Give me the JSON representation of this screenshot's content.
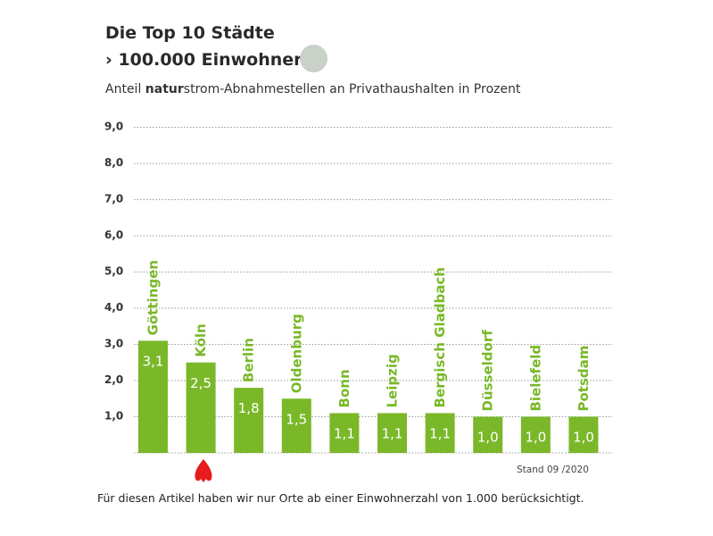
{
  "title_line1": "Die Top 10 Städte",
  "title_line2": "› 100.000 Einwohner",
  "subtitle_pre": "Anteil ",
  "subtitle_bold": "natur",
  "subtitle_post": "strom-Abnahmestellen an Privathaushalten in Prozent",
  "stand": "Stand 09 /2020",
  "footnote": "Für diesen Artikel haben wir nur Orte ab einer Einwohnerzahl von 1.000 berücksichtigt.",
  "colors": {
    "bar": "#7ab829",
    "label": "#7ab829",
    "value_text": "#ffffff",
    "marker": "#e81c1c",
    "grid": "#9a9a9a"
  },
  "chart_data": {
    "type": "bar",
    "categories": [
      "Göttingen",
      "Köln",
      "Berlin",
      "Oldenburg",
      "Bonn",
      "Leipzig",
      "Bergisch Gladbach",
      "Düsseldorf",
      "Bielefeld",
      "Potsdam"
    ],
    "values": [
      3.1,
      2.5,
      1.8,
      1.5,
      1.1,
      1.1,
      1.1,
      1.0,
      1.0,
      1.0
    ],
    "value_labels": [
      "3,1",
      "2,5",
      "1,8",
      "1,5",
      "1,1",
      "1,1",
      "1,1",
      "1,0",
      "1,0",
      "1,0"
    ],
    "yticks": [
      "1,0",
      "2,0",
      "3,0",
      "4,0",
      "5,0",
      "6,0",
      "7,0",
      "8,0",
      "9,0"
    ],
    "ylim": [
      0,
      9
    ],
    "grid": true,
    "highlighted_category": "Köln"
  }
}
